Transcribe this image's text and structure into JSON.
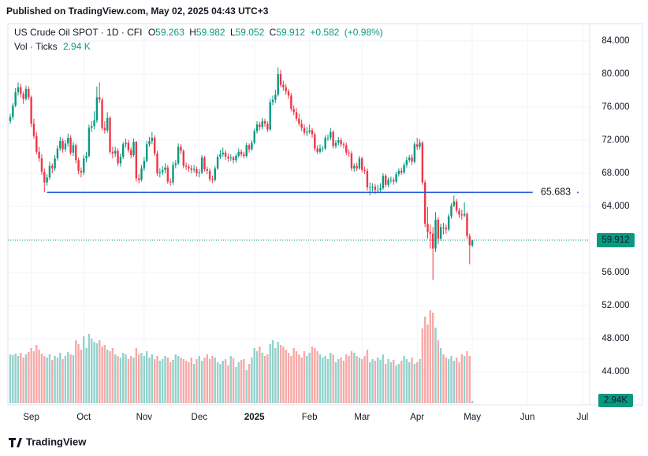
{
  "header": "Published on TradingView.com, May 02, 2025 04:43 UTC+3",
  "footer": "TradingView",
  "chart_data": {
    "type": "candlestick",
    "symbol": "US Crude Oil SPOT · 1D · CFI",
    "ohlc_letters": [
      "O",
      "H",
      "L",
      "C"
    ],
    "change": "+0.582",
    "change_pct": "(+0.98%)",
    "volume_title": "Vol · Ticks",
    "volume_legend": "2.94 K",
    "volume_badge": "2.94K",
    "colors": {
      "up": "#089981",
      "down": "#f23645",
      "volume_up": "#92d2cc",
      "volume_down": "#f7a9a7",
      "hline": "#2a5bd7"
    },
    "hline": 65.683,
    "xlim": [
      -0.9,
      220.7
    ],
    "xticks": [
      {
        "value": 8,
        "label": "Sep"
      },
      {
        "value": 28,
        "label": "Oct"
      },
      {
        "value": 51,
        "label": "Nov"
      },
      {
        "value": 72,
        "label": "Dec"
      },
      {
        "value": 93,
        "label": "2025"
      },
      {
        "value": 114,
        "label": "Feb"
      },
      {
        "value": 134,
        "label": "Mar"
      },
      {
        "value": 155,
        "label": "Apr"
      },
      {
        "value": 176,
        "label": "May"
      },
      {
        "value": 197,
        "label": "Jun"
      },
      {
        "value": 218,
        "label": "Jul"
      }
    ],
    "ylim": [
      40.19,
      86.1
    ],
    "yticks": [
      {
        "value": 44,
        "label": "44.000"
      },
      {
        "value": 48,
        "label": "48.000"
      },
      {
        "value": 52,
        "label": "52.000"
      },
      {
        "value": 56,
        "label": "56.000"
      },
      {
        "value": 60,
        "label": "60.000"
      },
      {
        "value": 64,
        "label": "64.000"
      },
      {
        "value": 68,
        "label": "68.000"
      },
      {
        "value": 72,
        "label": "72.000"
      },
      {
        "value": 76,
        "label": "76.000"
      },
      {
        "value": 80,
        "label": "80.000"
      },
      {
        "value": 84,
        "label": "84.000"
      }
    ],
    "grid": true,
    "candles": [
      [
        74.3,
        75.2,
        74.0,
        74.8
      ],
      [
        74.8,
        76.5,
        74.5,
        76.2
      ],
      [
        76.2,
        78.3,
        76.0,
        77.8
      ],
      [
        77.8,
        79.0,
        77.4,
        78.4
      ],
      [
        78.4,
        78.8,
        77.2,
        77.6
      ],
      [
        77.6,
        77.9,
        76.4,
        77.0
      ],
      [
        77.0,
        78.6,
        76.8,
        78.2
      ],
      [
        78.2,
        78.5,
        76.9,
        77.2
      ],
      [
        77.2,
        77.4,
        73.6,
        74.0
      ],
      [
        74.0,
        74.6,
        72.2,
        72.5
      ],
      [
        72.5,
        73.0,
        70.3,
        70.6
      ],
      [
        70.6,
        71.2,
        69.4,
        69.8
      ],
      [
        69.8,
        70.3,
        67.8,
        68.2
      ],
      [
        68.2,
        68.6,
        65.7,
        66.9
      ],
      [
        66.9,
        67.9,
        66.5,
        67.5
      ],
      [
        67.5,
        69.4,
        67.2,
        68.9
      ],
      [
        68.9,
        69.2,
        68.0,
        68.6
      ],
      [
        68.6,
        70.2,
        68.3,
        69.8
      ],
      [
        69.8,
        71.4,
        69.5,
        71.0
      ],
      [
        71.0,
        72.4,
        70.7,
        71.9
      ],
      [
        71.9,
        72.2,
        70.5,
        70.9
      ],
      [
        70.9,
        72.0,
        70.6,
        71.6
      ],
      [
        71.6,
        72.8,
        71.2,
        72.3
      ],
      [
        72.3,
        72.6,
        70.2,
        70.5
      ],
      [
        70.5,
        71.8,
        70.1,
        71.4
      ],
      [
        71.4,
        71.6,
        69.2,
        69.6
      ],
      [
        69.6,
        69.9,
        67.9,
        68.3
      ],
      [
        68.3,
        68.7,
        67.5,
        68.1
      ],
      [
        68.1,
        70.2,
        67.8,
        69.8
      ],
      [
        69.8,
        70.6,
        69.3,
        70.1
      ],
      [
        70.1,
        73.9,
        69.9,
        73.5
      ],
      [
        73.5,
        74.3,
        73.0,
        73.7
      ],
      [
        73.7,
        75.5,
        73.3,
        74.4
      ],
      [
        74.4,
        78.5,
        74.1,
        77.2
      ],
      [
        77.2,
        79.0,
        76.5,
        76.9
      ],
      [
        76.9,
        77.1,
        73.2,
        73.5
      ],
      [
        73.5,
        74.3,
        72.8,
        73.2
      ],
      [
        73.2,
        75.4,
        72.9,
        74.7
      ],
      [
        74.7,
        74.9,
        70.3,
        70.6
      ],
      [
        70.6,
        71.2,
        69.8,
        70.4
      ],
      [
        70.4,
        71.2,
        70.0,
        70.7
      ],
      [
        70.7,
        71.0,
        68.9,
        69.2
      ],
      [
        69.2,
        70.4,
        68.8,
        70.0
      ],
      [
        70.0,
        71.8,
        69.7,
        71.5
      ],
      [
        71.5,
        72.2,
        71.1,
        71.7
      ],
      [
        71.7,
        72.0,
        70.5,
        70.8
      ],
      [
        70.8,
        71.1,
        69.8,
        70.2
      ],
      [
        70.2,
        72.2,
        70.0,
        71.8
      ],
      [
        71.8,
        71.9,
        67.0,
        67.4
      ],
      [
        67.4,
        67.9,
        66.8,
        67.2
      ],
      [
        67.2,
        69.0,
        67.0,
        68.6
      ],
      [
        68.6,
        70.0,
        68.3,
        69.5
      ],
      [
        69.5,
        71.9,
        69.3,
        71.5
      ],
      [
        71.5,
        72.4,
        71.2,
        71.9
      ],
      [
        71.9,
        73.0,
        71.5,
        72.3
      ],
      [
        72.3,
        72.6,
        70.1,
        70.4
      ],
      [
        70.4,
        70.7,
        67.7,
        68.0
      ],
      [
        68.0,
        68.6,
        67.5,
        68.1
      ],
      [
        68.1,
        68.9,
        67.8,
        68.4
      ],
      [
        68.4,
        69.2,
        68.0,
        68.7
      ],
      [
        68.7,
        69.0,
        66.7,
        67.0
      ],
      [
        67.0,
        67.4,
        66.5,
        66.9
      ],
      [
        66.9,
        69.4,
        66.6,
        69.0
      ],
      [
        69.0,
        69.6,
        68.6,
        69.2
      ],
      [
        69.2,
        71.6,
        69.0,
        71.2
      ],
      [
        71.2,
        71.5,
        70.3,
        70.7
      ],
      [
        70.7,
        70.9,
        68.6,
        68.9
      ],
      [
        68.9,
        69.3,
        68.4,
        68.8
      ],
      [
        68.8,
        69.1,
        68.2,
        68.6
      ],
      [
        68.6,
        69.0,
        68.0,
        68.4
      ],
      [
        68.4,
        69.0,
        68.1,
        68.5
      ],
      [
        68.5,
        68.8,
        67.6,
        68.0
      ],
      [
        68.0,
        68.5,
        67.5,
        68.1
      ],
      [
        68.1,
        70.2,
        67.9,
        69.9
      ],
      [
        69.9,
        70.1,
        68.2,
        68.5
      ],
      [
        68.5,
        68.8,
        67.9,
        68.3
      ],
      [
        68.3,
        68.6,
        67.0,
        67.3
      ],
      [
        67.3,
        67.7,
        66.8,
        67.2
      ],
      [
        67.2,
        68.9,
        67.0,
        68.6
      ],
      [
        68.6,
        70.3,
        68.4,
        70.0
      ],
      [
        70.0,
        70.8,
        69.7,
        70.3
      ],
      [
        70.3,
        71.1,
        70.0,
        70.5
      ],
      [
        70.5,
        70.8,
        69.6,
        70.0
      ],
      [
        70.0,
        70.4,
        69.4,
        69.8
      ],
      [
        69.8,
        70.3,
        69.5,
        69.9
      ],
      [
        69.9,
        70.1,
        69.2,
        69.6
      ],
      [
        69.6,
        70.4,
        69.3,
        70.1
      ],
      [
        70.1,
        71.0,
        69.9,
        70.6
      ],
      [
        70.6,
        70.9,
        70.0,
        70.3
      ],
      [
        70.3,
        70.6,
        69.8,
        70.1
      ],
      [
        70.1,
        71.7,
        69.9,
        71.4
      ],
      [
        71.4,
        71.6,
        70.5,
        70.9
      ],
      [
        70.9,
        72.0,
        70.7,
        71.7
      ],
      [
        71.7,
        73.4,
        71.5,
        73.1
      ],
      [
        73.1,
        74.3,
        72.8,
        73.9
      ],
      [
        73.9,
        74.2,
        73.2,
        73.6
      ],
      [
        73.6,
        74.7,
        73.3,
        74.3
      ],
      [
        74.3,
        74.6,
        73.6,
        74.0
      ],
      [
        74.0,
        74.3,
        73.0,
        73.3
      ],
      [
        73.3,
        77.0,
        73.1,
        76.6
      ],
      [
        76.6,
        77.4,
        76.2,
        76.9
      ],
      [
        76.9,
        78.1,
        76.5,
        77.5
      ],
      [
        77.5,
        80.8,
        77.3,
        80.0
      ],
      [
        80.0,
        80.5,
        78.4,
        78.7
      ],
      [
        78.7,
        79.2,
        78.0,
        78.4
      ],
      [
        78.4,
        78.8,
        77.5,
        77.9
      ],
      [
        77.9,
        78.2,
        77.0,
        77.4
      ],
      [
        77.4,
        77.7,
        75.5,
        75.8
      ],
      [
        75.8,
        76.2,
        75.0,
        75.4
      ],
      [
        75.4,
        75.9,
        74.3,
        74.6
      ],
      [
        74.6,
        75.2,
        73.7,
        74.0
      ],
      [
        74.0,
        74.5,
        73.1,
        73.5
      ],
      [
        73.5,
        73.9,
        72.6,
        72.9
      ],
      [
        72.9,
        73.6,
        72.5,
        73.0
      ],
      [
        73.0,
        73.9,
        72.8,
        73.2
      ],
      [
        73.2,
        73.5,
        72.3,
        72.7
      ],
      [
        72.7,
        73.0,
        70.7,
        71.0
      ],
      [
        71.0,
        71.4,
        70.3,
        70.6
      ],
      [
        70.6,
        71.5,
        70.4,
        71.0
      ],
      [
        71.0,
        71.3,
        70.6,
        71.0
      ],
      [
        71.0,
        72.6,
        70.8,
        72.3
      ],
      [
        72.3,
        72.7,
        71.9,
        72.3
      ],
      [
        72.3,
        73.5,
        72.0,
        73.0
      ],
      [
        73.0,
        73.2,
        71.0,
        71.3
      ],
      [
        71.3,
        72.0,
        71.0,
        71.7
      ],
      [
        71.7,
        72.4,
        71.4,
        72.0
      ],
      [
        72.0,
        72.3,
        71.2,
        71.5
      ],
      [
        71.5,
        71.8,
        71.0,
        71.4
      ],
      [
        71.4,
        71.7,
        70.2,
        70.5
      ],
      [
        70.5,
        70.9,
        70.0,
        70.4
      ],
      [
        70.4,
        70.7,
        68.3,
        68.6
      ],
      [
        68.6,
        69.2,
        68.2,
        68.9
      ],
      [
        68.9,
        69.3,
        68.3,
        68.6
      ],
      [
        68.6,
        70.1,
        68.4,
        69.8
      ],
      [
        69.8,
        70.0,
        68.1,
        68.4
      ],
      [
        68.4,
        68.8,
        67.9,
        68.3
      ],
      [
        68.3,
        68.6,
        65.9,
        66.3
      ],
      [
        66.3,
        66.9,
        65.3,
        66.3
      ],
      [
        66.3,
        66.8,
        65.8,
        66.4
      ],
      [
        66.4,
        66.7,
        65.5,
        66.0
      ],
      [
        66.0,
        66.6,
        65.6,
        66.0
      ],
      [
        66.0,
        66.8,
        65.7,
        66.2
      ],
      [
        66.2,
        68.0,
        66.0,
        67.7
      ],
      [
        67.7,
        67.9,
        66.3,
        66.6
      ],
      [
        66.6,
        67.5,
        66.3,
        67.2
      ],
      [
        67.2,
        67.6,
        66.8,
        67.2
      ],
      [
        67.2,
        67.5,
        66.6,
        67.0
      ],
      [
        67.0,
        68.2,
        66.8,
        67.9
      ],
      [
        67.9,
        68.6,
        67.6,
        68.3
      ],
      [
        68.3,
        68.7,
        67.8,
        68.1
      ],
      [
        68.1,
        69.3,
        67.9,
        69.0
      ],
      [
        69.0,
        70.0,
        68.7,
        69.6
      ],
      [
        69.6,
        70.2,
        69.3,
        69.9
      ],
      [
        69.9,
        70.3,
        69.0,
        69.4
      ],
      [
        69.4,
        71.8,
        69.2,
        71.5
      ],
      [
        71.5,
        72.3,
        70.8,
        71.2
      ],
      [
        71.2,
        72.1,
        70.9,
        71.7
      ],
      [
        71.7,
        71.9,
        66.6,
        66.9
      ],
      [
        66.9,
        67.2,
        61.5,
        61.9
      ],
      [
        61.9,
        63.9,
        60.1,
        60.9
      ],
      [
        60.9,
        61.8,
        58.9,
        60.7
      ],
      [
        60.7,
        61.5,
        55.1,
        58.9
      ],
      [
        58.9,
        63.3,
        58.5,
        62.4
      ],
      [
        62.4,
        62.7,
        59.4,
        60.1
      ],
      [
        60.1,
        61.9,
        59.8,
        61.5
      ],
      [
        61.5,
        62.0,
        60.6,
        61.4
      ],
      [
        61.4,
        61.8,
        60.7,
        61.2
      ],
      [
        61.2,
        63.1,
        61.0,
        62.8
      ],
      [
        62.8,
        64.4,
        62.5,
        64.1
      ],
      [
        64.1,
        65.3,
        63.9,
        64.6
      ],
      [
        64.6,
        64.9,
        63.2,
        63.5
      ],
      [
        63.5,
        63.8,
        62.6,
        63.0
      ],
      [
        63.0,
        63.6,
        62.4,
        62.9
      ],
      [
        62.9,
        64.5,
        62.7,
        63.1
      ],
      [
        63.1,
        63.3,
        60.1,
        60.4
      ],
      [
        60.4,
        60.7,
        57.0,
        59.3
      ],
      [
        59.263,
        59.982,
        59.052,
        59.912
      ]
    ],
    "volume": [
      62,
      61,
      63,
      60,
      64,
      58,
      62,
      65,
      70,
      66,
      74,
      68,
      63,
      60,
      58,
      62,
      55,
      60,
      58,
      64,
      56,
      60,
      65,
      62,
      61,
      80,
      75,
      68,
      85,
      70,
      88,
      82,
      78,
      76,
      80,
      72,
      74,
      68,
      66,
      70,
      62,
      60,
      58,
      64,
      62,
      56,
      60,
      58,
      70,
      62,
      64,
      60,
      66,
      58,
      62,
      56,
      60,
      54,
      56,
      60,
      58,
      52,
      55,
      62,
      60,
      58,
      56,
      54,
      52,
      58,
      50,
      56,
      60,
      54,
      58,
      62,
      56,
      60,
      58,
      52,
      50,
      54,
      56,
      48,
      60,
      57,
      46,
      52,
      55,
      56,
      42,
      50,
      58,
      70,
      66,
      72,
      64,
      60,
      62,
      75,
      80,
      70,
      78,
      74,
      72,
      68,
      64,
      60,
      70,
      66,
      62,
      58,
      66,
      60,
      64,
      72,
      70,
      66,
      62,
      58,
      60,
      56,
      64,
      62,
      52,
      56,
      58,
      54,
      62,
      60,
      66,
      64,
      60,
      58,
      56,
      60,
      68,
      52,
      56,
      54,
      58,
      55,
      62,
      50,
      56,
      52,
      55,
      48,
      50,
      54,
      60,
      56,
      52,
      58,
      50,
      52,
      56,
      95,
      110,
      100,
      118,
      115,
      96,
      80,
      70,
      62,
      58,
      56,
      60,
      54,
      58,
      52,
      62,
      60,
      66,
      60,
      2.94
    ]
  }
}
